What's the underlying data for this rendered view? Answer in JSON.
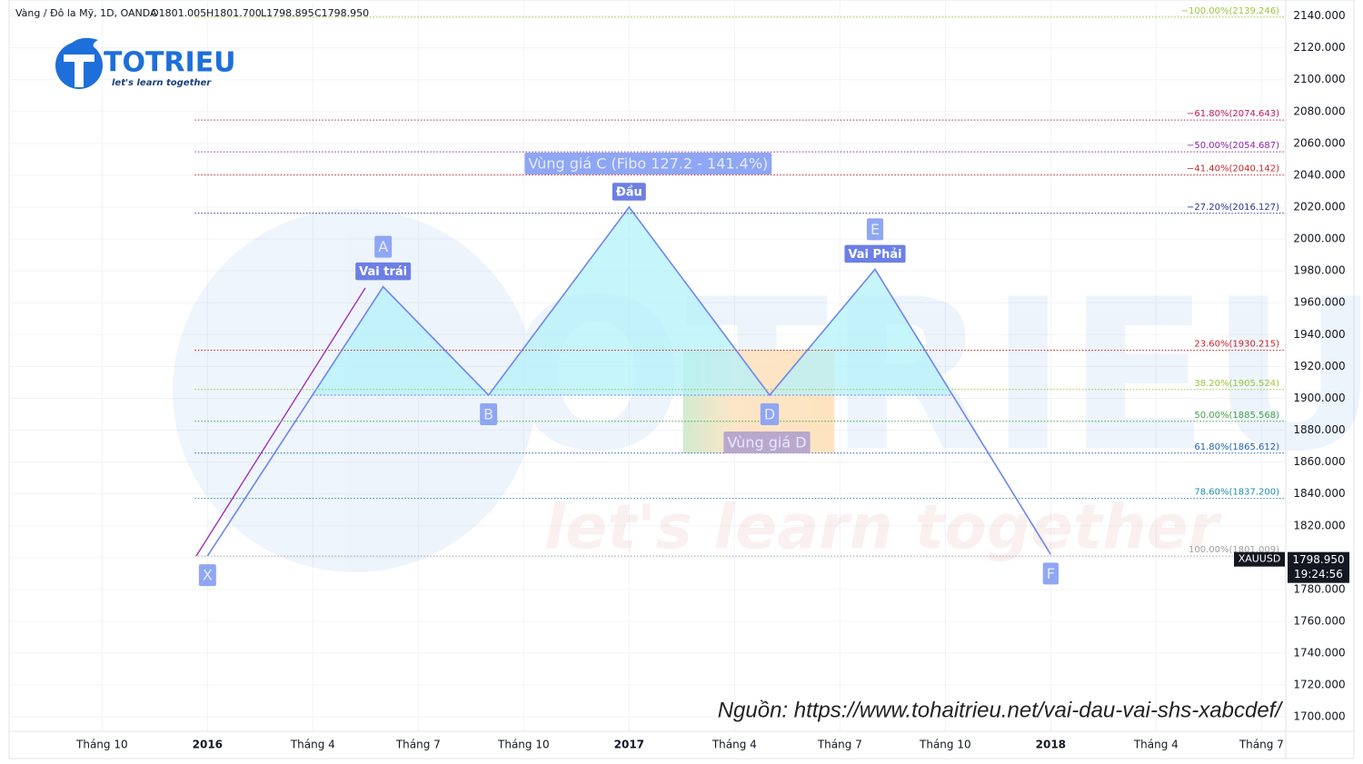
{
  "header": {
    "symbol": "Vàng / Đô la Mỹ, 1D, OANDA",
    "ohlc": [
      "O1801.005",
      "H1801.700",
      "L1798.895",
      "C1798.950"
    ]
  },
  "logo": {
    "name": "TOTRIEU",
    "slogan": "let's learn together"
  },
  "source": "Nguồn: https://www.tohaitrieu.net/vai-dau-vai-shs-xabcdef/",
  "chart_data": {
    "type": "line",
    "x": [
      "2016-01",
      "2016-06",
      "2016-09",
      "2017-01",
      "2017-05",
      "2017-08",
      "2018-01"
    ],
    "values": [
      1801,
      1970,
      1902,
      2020,
      1902,
      1981,
      1802
    ],
    "color": "#6f86ee",
    "fill_color": "#b4f1fb",
    "point_labels": [
      "X",
      "A",
      "B",
      null,
      "D",
      "E",
      "F"
    ],
    "pattern_labels": [
      null,
      "Vai trái",
      null,
      "Đầu",
      null,
      "Vai Phải",
      null
    ],
    "zone_c_label": "Vùng giá C (Fibo 127.2 - 141.4%)",
    "zone_d": {
      "label": "Vùng giá D",
      "x": [
        "2017-03",
        "2017-07"
      ]
    },
    "fib_levels": [
      {
        "label": "−100.00%(2139.246)",
        "value": 2139.246,
        "color": "#9bc53d"
      },
      {
        "label": "−61.80%(2074.643)",
        "value": 2074.643,
        "color": "#c2185b"
      },
      {
        "label": "−50.00%(2054.687)",
        "value": 2054.687,
        "color": "#8e24aa"
      },
      {
        "label": "−41.40%(2040.142)",
        "value": 2040.142,
        "color": "#c62828"
      },
      {
        "label": "−27.20%(2016.127)",
        "value": 2016.127,
        "color": "#283593"
      },
      {
        "label": "23.60%(1930.215)",
        "value": 1930.215,
        "color": "#c62828"
      },
      {
        "label": "38.20%(1905.524)",
        "value": 1905.524,
        "color": "#9bc53d"
      },
      {
        "label": "50.00%(1885.568)",
        "value": 1885.568,
        "color": "#43a047"
      },
      {
        "label": "61.80%(1865.612)",
        "value": 1865.612,
        "color": "#1e5fb4"
      },
      {
        "label": "78.60%(1837.200)",
        "value": 1837.2,
        "color": "#1f8fa8"
      },
      {
        "label": "100.00%(1801.009)",
        "value": 1801.009,
        "color": "#9e9e9e"
      }
    ],
    "last_price": {
      "value": 1798.95,
      "label": "1798.950",
      "time": "19:24:56",
      "symbol": "XAUUSD"
    },
    "xlim": [
      "2015-08",
      "2018-08"
    ],
    "xticks": [
      {
        "value": "2015-10",
        "label": "Tháng 10"
      },
      {
        "value": "2016-01",
        "label": "2016"
      },
      {
        "value": "2016-04",
        "label": "Tháng 4"
      },
      {
        "value": "2016-07",
        "label": "Tháng 7"
      },
      {
        "value": "2016-10",
        "label": "Tháng 10"
      },
      {
        "value": "2017-01",
        "label": "2017"
      },
      {
        "value": "2017-04",
        "label": "Tháng 4"
      },
      {
        "value": "2017-07",
        "label": "Tháng 7"
      },
      {
        "value": "2017-10",
        "label": "Tháng 10"
      },
      {
        "value": "2018-01",
        "label": "2018"
      },
      {
        "value": "2018-04",
        "label": "Tháng 4"
      },
      {
        "value": "2018-07",
        "label": "Tháng 7"
      }
    ],
    "ylim": [
      1691,
      2150
    ],
    "yticks": [
      {
        "value": 1700,
        "label": "1700.000"
      },
      {
        "value": 1720,
        "label": "1720.000"
      },
      {
        "value": 1740,
        "label": "1740.000"
      },
      {
        "value": 1760,
        "label": "1760.000"
      },
      {
        "value": 1780,
        "label": "1780.000"
      },
      {
        "value": 1800,
        "label": "1800.000"
      },
      {
        "value": 1820,
        "label": "1820.000"
      },
      {
        "value": 1840,
        "label": "1840.000"
      },
      {
        "value": 1860,
        "label": "1860.000"
      },
      {
        "value": 1880,
        "label": "1880.000"
      },
      {
        "value": 1900,
        "label": "1900.000"
      },
      {
        "value": 1920,
        "label": "1920.000"
      },
      {
        "value": 1940,
        "label": "1940.000"
      },
      {
        "value": 1960,
        "label": "1960.000"
      },
      {
        "value": 1980,
        "label": "1980.000"
      },
      {
        "value": 2000,
        "label": "2000.000"
      },
      {
        "value": 2020,
        "label": "2020.000"
      },
      {
        "value": 2040,
        "label": "2040.000"
      },
      {
        "value": 2060,
        "label": "2060.000"
      },
      {
        "value": 2080,
        "label": "2080.000"
      },
      {
        "value": 2100,
        "label": "2100.000"
      },
      {
        "value": 2120,
        "label": "2120.000"
      },
      {
        "value": 2140,
        "label": "2140.000"
      }
    ],
    "grid": true
  }
}
